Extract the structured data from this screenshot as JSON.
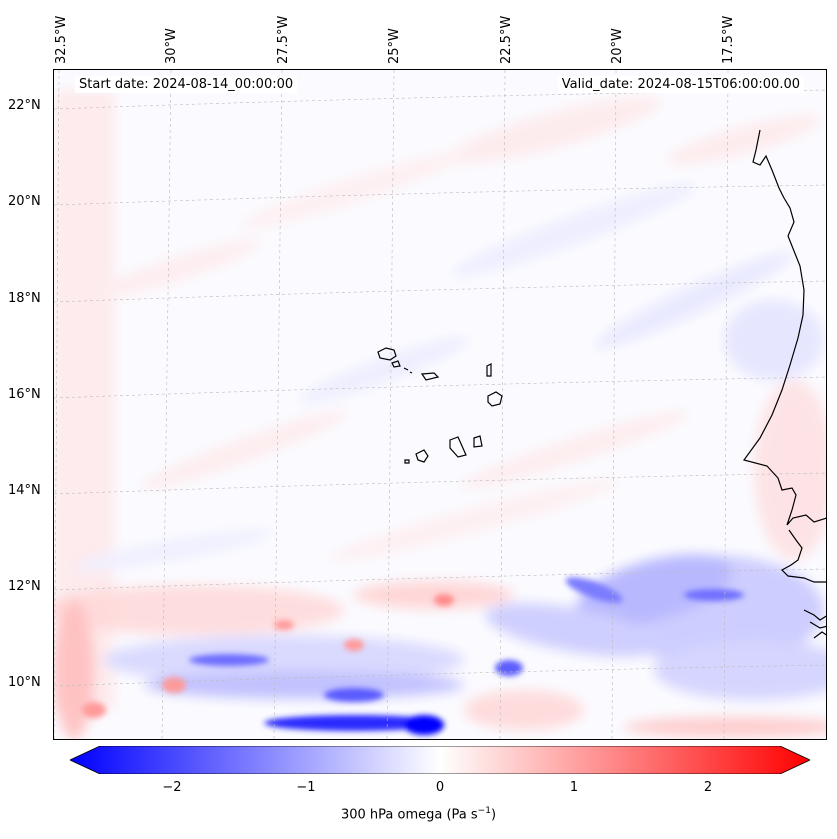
{
  "header": {
    "start_date": "Start date: 2024-08-14_00:00:00",
    "valid_date": "Valid_date: 2024-08-15T06:00:00.00"
  },
  "longitude_labels": [
    "32.5°W",
    "30°W",
    "27.5°W",
    "25°W",
    "22.5°W",
    "20°W",
    "17.5°W"
  ],
  "latitude_labels": [
    "22°N",
    "20°N",
    "18°N",
    "16°N",
    "14°N",
    "12°N",
    "10°N"
  ],
  "colorbar": {
    "ticks": [
      "−2",
      "−1",
      "0",
      "1",
      "2"
    ],
    "label": "300 hPa omega (Pa s",
    "label_sup": "−1",
    "label_end": ")",
    "colors": {
      "negative": "#0000ff",
      "neutral": "#ffffff",
      "positive": "#ff0000"
    }
  },
  "map_style": {
    "coastline_color": "#000000",
    "gridline_color": "#bbbbbb"
  }
}
